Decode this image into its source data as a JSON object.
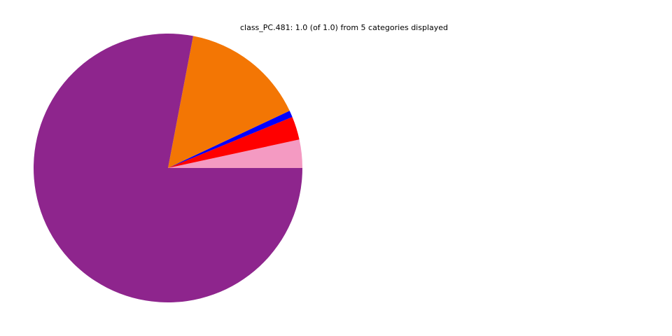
{
  "chart_data": {
    "type": "pie",
    "title": "class_PC.481: 1.0 (of 1.0) from 5 categories displayed",
    "slices": [
      {
        "value": 0.034,
        "color": "#f49ac2"
      },
      {
        "value": 0.028,
        "color": "#ff0000"
      },
      {
        "value": 0.008,
        "color": "#0000ff"
      },
      {
        "value": 0.15,
        "color": "#f37604"
      },
      {
        "value": 0.78,
        "color": "#8e258d"
      }
    ],
    "start_angle_deg": 0,
    "direction": "counterclockwise"
  }
}
